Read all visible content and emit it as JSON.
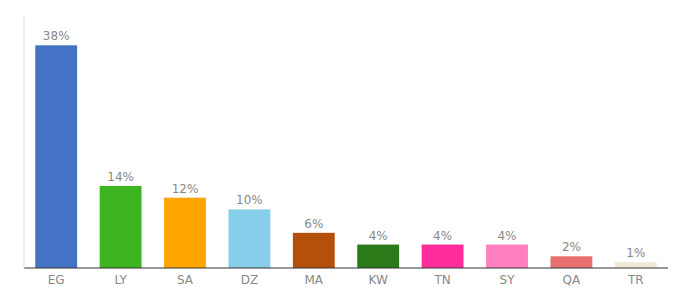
{
  "chart_data": {
    "type": "bar",
    "categories": [
      "EG",
      "LY",
      "SA",
      "DZ",
      "MA",
      "KW",
      "TN",
      "SY",
      "QA",
      "TR"
    ],
    "values": [
      38,
      14,
      12,
      10,
      6,
      4,
      4,
      4,
      2,
      1
    ],
    "value_labels": [
      "38%",
      "14%",
      "12%",
      "10%",
      "6%",
      "4%",
      "4%",
      "4%",
      "2%",
      "1%"
    ],
    "colors": [
      "#4472c4",
      "#3cb520",
      "#ffa500",
      "#87ceeb",
      "#b5500a",
      "#2a7a1a",
      "#ff2d9b",
      "#ff80c0",
      "#e87070",
      "#f0ead6"
    ],
    "ylim": [
      0,
      43
    ],
    "data_labels": true,
    "tick_labels": "x"
  }
}
